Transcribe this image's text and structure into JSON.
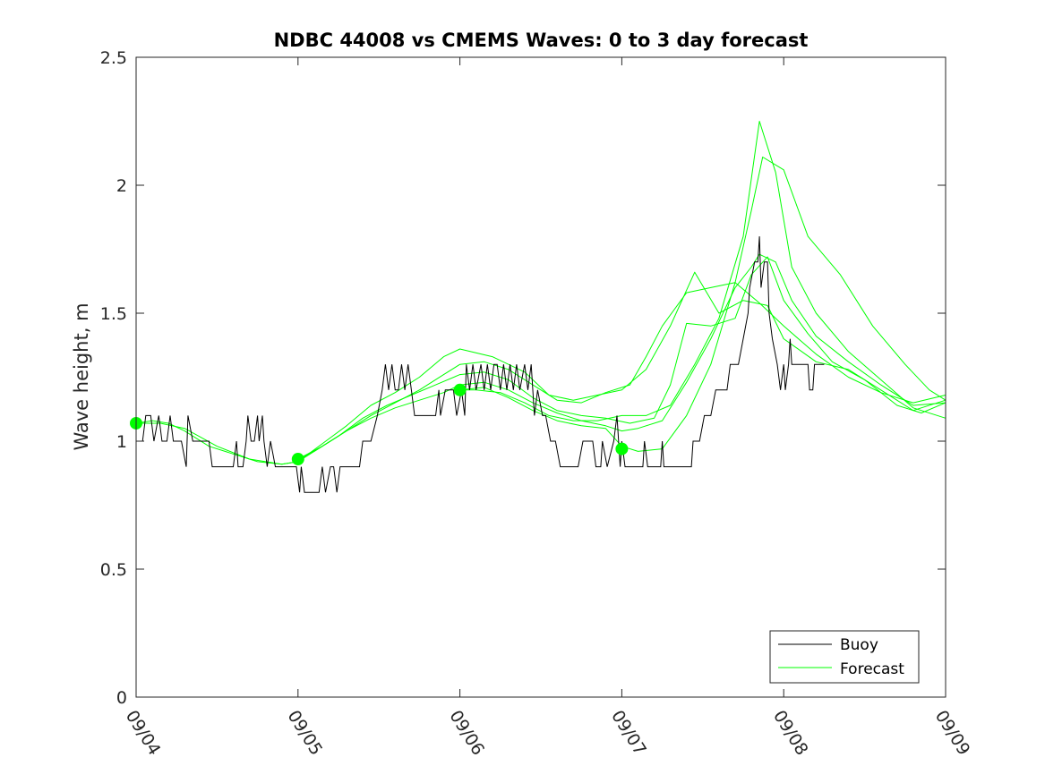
{
  "chart_data": {
    "type": "line",
    "title": "NDBC 44008 vs CMEMS Waves: 0 to 3 day forecast",
    "xlabel": "",
    "ylabel": "Wave height, m",
    "xlim": [
      0,
      5
    ],
    "ylim": [
      0,
      2.5
    ],
    "x_ticks": [
      0,
      1,
      2,
      3,
      4,
      5
    ],
    "x_tick_labels": [
      "09/04",
      "09/05",
      "09/06",
      "09/07",
      "09/08",
      "09/09"
    ],
    "y_ticks": [
      0,
      0.5,
      1,
      1.5,
      2,
      2.5
    ],
    "y_tick_labels": [
      "0",
      "0.5",
      "1",
      "1.5",
      "2",
      "2.5"
    ],
    "grid": false,
    "legend_position": "bottom-right",
    "legend": [
      {
        "label": "Buoy",
        "color": "#000000"
      },
      {
        "label": "Forecast",
        "color": "#00ff00"
      }
    ],
    "buoy": {
      "name": "Buoy",
      "color": "#000000",
      "points": [
        [
          0.0,
          1.0
        ],
        [
          0.04,
          1.0
        ],
        [
          0.06,
          1.1
        ],
        [
          0.09,
          1.1
        ],
        [
          0.11,
          1.0
        ],
        [
          0.14,
          1.1
        ],
        [
          0.16,
          1.0
        ],
        [
          0.19,
          1.0
        ],
        [
          0.21,
          1.1
        ],
        [
          0.23,
          1.0
        ],
        [
          0.26,
          1.0
        ],
        [
          0.28,
          1.0
        ],
        [
          0.31,
          0.9
        ],
        [
          0.32,
          1.1
        ],
        [
          0.35,
          1.0
        ],
        [
          0.4,
          1.0
        ],
        [
          0.45,
          1.0
        ],
        [
          0.47,
          0.9
        ],
        [
          0.55,
          0.9
        ],
        [
          0.6,
          0.9
        ],
        [
          0.62,
          1.0
        ],
        [
          0.63,
          0.9
        ],
        [
          0.66,
          0.9
        ],
        [
          0.68,
          1.0
        ],
        [
          0.69,
          1.1
        ],
        [
          0.71,
          1.0
        ],
        [
          0.73,
          1.0
        ],
        [
          0.75,
          1.1
        ],
        [
          0.76,
          1.0
        ],
        [
          0.78,
          1.1
        ],
        [
          0.79,
          1.0
        ],
        [
          0.81,
          0.9
        ],
        [
          0.83,
          1.0
        ],
        [
          0.86,
          0.9
        ],
        [
          0.94,
          0.9
        ],
        [
          0.97,
          0.9
        ],
        [
          0.99,
          0.9
        ],
        [
          1.01,
          0.8
        ],
        [
          1.02,
          0.9
        ],
        [
          1.04,
          0.8
        ],
        [
          1.1,
          0.8
        ],
        [
          1.13,
          0.8
        ],
        [
          1.15,
          0.9
        ],
        [
          1.17,
          0.8
        ],
        [
          1.2,
          0.9
        ],
        [
          1.22,
          0.9
        ],
        [
          1.24,
          0.8
        ],
        [
          1.26,
          0.9
        ],
        [
          1.38,
          0.9
        ],
        [
          1.4,
          1.0
        ],
        [
          1.45,
          1.0
        ],
        [
          1.49,
          1.1
        ],
        [
          1.52,
          1.2
        ],
        [
          1.54,
          1.3
        ],
        [
          1.56,
          1.2
        ],
        [
          1.58,
          1.3
        ],
        [
          1.6,
          1.2
        ],
        [
          1.62,
          1.2
        ],
        [
          1.64,
          1.3
        ],
        [
          1.66,
          1.2
        ],
        [
          1.68,
          1.3
        ],
        [
          1.7,
          1.2
        ],
        [
          1.72,
          1.1
        ],
        [
          1.74,
          1.1
        ],
        [
          1.8,
          1.1
        ],
        [
          1.85,
          1.1
        ],
        [
          1.87,
          1.2
        ],
        [
          1.88,
          1.1
        ],
        [
          1.91,
          1.2
        ],
        [
          1.96,
          1.2
        ],
        [
          1.98,
          1.1
        ],
        [
          2.01,
          1.2
        ],
        [
          2.03,
          1.1
        ],
        [
          2.04,
          1.3
        ],
        [
          2.06,
          1.2
        ],
        [
          2.08,
          1.3
        ],
        [
          2.1,
          1.2
        ],
        [
          2.13,
          1.3
        ],
        [
          2.15,
          1.2
        ],
        [
          2.17,
          1.3
        ],
        [
          2.19,
          1.2
        ],
        [
          2.21,
          1.3
        ],
        [
          2.23,
          1.3
        ],
        [
          2.25,
          1.2
        ],
        [
          2.27,
          1.3
        ],
        [
          2.29,
          1.2
        ],
        [
          2.31,
          1.3
        ],
        [
          2.33,
          1.2
        ],
        [
          2.35,
          1.3
        ],
        [
          2.37,
          1.2
        ],
        [
          2.4,
          1.3
        ],
        [
          2.42,
          1.2
        ],
        [
          2.44,
          1.3
        ],
        [
          2.46,
          1.1
        ],
        [
          2.48,
          1.2
        ],
        [
          2.51,
          1.1
        ],
        [
          2.53,
          1.1
        ],
        [
          2.56,
          1.0
        ],
        [
          2.59,
          1.0
        ],
        [
          2.62,
          0.9
        ],
        [
          2.7,
          0.9
        ],
        [
          2.73,
          0.9
        ],
        [
          2.76,
          1.0
        ],
        [
          2.79,
          1.0
        ],
        [
          2.82,
          1.0
        ],
        [
          2.84,
          0.9
        ],
        [
          2.87,
          0.9
        ],
        [
          2.88,
          1.0
        ],
        [
          2.91,
          0.9
        ],
        [
          2.95,
          1.0
        ],
        [
          2.97,
          1.1
        ],
        [
          2.99,
          0.9
        ],
        [
          3.0,
          1.0
        ],
        [
          3.02,
          0.9
        ],
        [
          3.1,
          0.9
        ],
        [
          3.13,
          0.9
        ],
        [
          3.14,
          1.0
        ],
        [
          3.16,
          0.9
        ],
        [
          3.24,
          0.9
        ],
        [
          3.25,
          1.0
        ],
        [
          3.26,
          0.9
        ],
        [
          3.34,
          0.9
        ],
        [
          3.43,
          0.9
        ],
        [
          3.44,
          1.0
        ],
        [
          3.48,
          1.0
        ],
        [
          3.51,
          1.1
        ],
        [
          3.55,
          1.1
        ],
        [
          3.58,
          1.2
        ],
        [
          3.62,
          1.2
        ],
        [
          3.65,
          1.2
        ],
        [
          3.67,
          1.3
        ],
        [
          3.72,
          1.3
        ],
        [
          3.75,
          1.4
        ],
        [
          3.78,
          1.5
        ],
        [
          3.79,
          1.6
        ],
        [
          3.82,
          1.7
        ],
        [
          3.84,
          1.7
        ],
        [
          3.85,
          1.8
        ],
        [
          3.86,
          1.6
        ],
        [
          3.88,
          1.7
        ],
        [
          3.9,
          1.7
        ],
        [
          3.91,
          1.5
        ],
        [
          3.93,
          1.4
        ],
        [
          3.96,
          1.3
        ],
        [
          3.98,
          1.2
        ],
        [
          4.0,
          1.3
        ],
        [
          4.01,
          1.2
        ],
        [
          4.03,
          1.3
        ],
        [
          4.04,
          1.4
        ],
        [
          4.05,
          1.3
        ],
        [
          4.08,
          1.3
        ],
        [
          4.15,
          1.3
        ],
        [
          4.16,
          1.2
        ],
        [
          4.18,
          1.2
        ],
        [
          4.19,
          1.3
        ],
        [
          4.25,
          1.3
        ]
      ]
    },
    "series": [
      {
        "name": "Forecast",
        "color": "#00ff00",
        "points": [
          [
            0.0,
            1.07
          ],
          [
            0.1,
            1.08
          ],
          [
            0.2,
            1.07
          ],
          [
            0.3,
            1.04
          ],
          [
            0.45,
            0.98
          ],
          [
            0.6,
            0.95
          ],
          [
            0.75,
            0.92
          ],
          [
            0.9,
            0.91
          ],
          [
            1.0,
            0.92
          ],
          [
            1.15,
            0.98
          ],
          [
            1.3,
            1.04
          ],
          [
            1.45,
            1.1
          ],
          [
            1.6,
            1.15
          ],
          [
            1.75,
            1.2
          ],
          [
            1.9,
            1.26
          ],
          [
            2.0,
            1.3
          ],
          [
            2.15,
            1.31
          ],
          [
            2.3,
            1.28
          ],
          [
            2.45,
            1.22
          ],
          [
            2.6,
            1.16
          ],
          [
            2.75,
            1.15
          ],
          [
            2.9,
            1.19
          ],
          [
            3.05,
            1.22
          ],
          [
            3.15,
            1.33
          ],
          [
            3.25,
            1.45
          ],
          [
            3.4,
            1.58
          ],
          [
            3.55,
            1.6
          ],
          [
            3.7,
            1.62
          ],
          [
            3.85,
            1.54
          ],
          [
            4.0,
            1.45
          ],
          [
            4.2,
            1.34
          ],
          [
            4.4,
            1.25
          ],
          [
            4.6,
            1.19
          ],
          [
            4.8,
            1.15
          ],
          [
            5.0,
            1.18
          ]
        ]
      },
      {
        "name": "",
        "color": "#00ff00",
        "points": [
          [
            0.0,
            1.07
          ],
          [
            0.15,
            1.07
          ],
          [
            0.3,
            1.05
          ],
          [
            0.5,
            0.98
          ],
          [
            0.7,
            0.93
          ],
          [
            0.9,
            0.91
          ],
          [
            1.0,
            0.92
          ],
          [
            1.15,
            0.99
          ],
          [
            1.3,
            1.06
          ],
          [
            1.45,
            1.14
          ],
          [
            1.6,
            1.19
          ],
          [
            1.75,
            1.25
          ],
          [
            1.9,
            1.33
          ],
          [
            2.0,
            1.36
          ],
          [
            2.2,
            1.33
          ],
          [
            2.4,
            1.27
          ],
          [
            2.55,
            1.18
          ],
          [
            2.7,
            1.16
          ],
          [
            2.85,
            1.18
          ],
          [
            3.0,
            1.2
          ],
          [
            3.15,
            1.28
          ],
          [
            3.3,
            1.45
          ],
          [
            3.45,
            1.66
          ],
          [
            3.6,
            1.5
          ],
          [
            3.75,
            1.55
          ],
          [
            3.9,
            1.53
          ],
          [
            4.0,
            1.4
          ],
          [
            4.2,
            1.31
          ],
          [
            4.4,
            1.28
          ],
          [
            4.6,
            1.2
          ],
          [
            4.8,
            1.12
          ],
          [
            5.0,
            1.16
          ]
        ]
      },
      {
        "name": "",
        "color": "#00ff00",
        "points": [
          [
            1.0,
            0.93
          ],
          [
            1.1,
            0.96
          ],
          [
            1.25,
            1.02
          ],
          [
            1.4,
            1.09
          ],
          [
            1.55,
            1.14
          ],
          [
            1.7,
            1.18
          ],
          [
            1.85,
            1.22
          ],
          [
            2.0,
            1.26
          ],
          [
            2.15,
            1.27
          ],
          [
            2.3,
            1.24
          ],
          [
            2.45,
            1.17
          ],
          [
            2.6,
            1.12
          ],
          [
            2.75,
            1.1
          ],
          [
            2.9,
            1.09
          ],
          [
            3.05,
            1.07
          ],
          [
            3.2,
            1.09
          ],
          [
            3.3,
            1.22
          ],
          [
            3.4,
            1.46
          ],
          [
            3.55,
            1.45
          ],
          [
            3.7,
            1.48
          ],
          [
            3.8,
            1.65
          ],
          [
            3.9,
            1.72
          ],
          [
            4.0,
            1.55
          ],
          [
            4.15,
            1.42
          ],
          [
            4.3,
            1.31
          ],
          [
            4.5,
            1.24
          ],
          [
            4.7,
            1.14
          ],
          [
            4.85,
            1.11
          ],
          [
            5.0,
            1.15
          ]
        ]
      },
      {
        "name": "",
        "color": "#00ff00",
        "points": [
          [
            1.0,
            0.93
          ],
          [
            1.15,
            0.98
          ],
          [
            1.3,
            1.04
          ],
          [
            1.45,
            1.09
          ],
          [
            1.6,
            1.13
          ],
          [
            1.75,
            1.16
          ],
          [
            1.9,
            1.19
          ],
          [
            2.0,
            1.22
          ],
          [
            2.15,
            1.23
          ],
          [
            2.3,
            1.2
          ],
          [
            2.45,
            1.15
          ],
          [
            2.6,
            1.11
          ],
          [
            2.75,
            1.08
          ],
          [
            2.9,
            1.06
          ],
          [
            3.0,
            1.04
          ],
          [
            3.1,
            1.05
          ],
          [
            3.25,
            1.08
          ],
          [
            3.4,
            1.23
          ],
          [
            3.55,
            1.4
          ],
          [
            3.7,
            1.6
          ],
          [
            3.8,
            1.68
          ],
          [
            3.85,
            1.73
          ],
          [
            3.95,
            1.7
          ],
          [
            4.05,
            1.55
          ],
          [
            4.2,
            1.41
          ],
          [
            4.4,
            1.31
          ],
          [
            4.6,
            1.22
          ],
          [
            4.8,
            1.14
          ],
          [
            5.0,
            1.15
          ]
        ]
      },
      {
        "name": "",
        "color": "#00ff00",
        "points": [
          [
            2.0,
            1.2
          ],
          [
            2.1,
            1.2
          ],
          [
            2.25,
            1.19
          ],
          [
            2.4,
            1.15
          ],
          [
            2.55,
            1.1
          ],
          [
            2.7,
            1.08
          ],
          [
            2.85,
            1.08
          ],
          [
            3.0,
            1.1
          ],
          [
            3.15,
            1.1
          ],
          [
            3.3,
            1.14
          ],
          [
            3.45,
            1.3
          ],
          [
            3.6,
            1.48
          ],
          [
            3.75,
            1.8
          ],
          [
            3.85,
            2.25
          ],
          [
            3.95,
            2.05
          ],
          [
            4.05,
            1.68
          ],
          [
            4.2,
            1.5
          ],
          [
            4.4,
            1.35
          ],
          [
            4.6,
            1.24
          ],
          [
            4.8,
            1.13
          ],
          [
            5.0,
            1.09
          ]
        ]
      },
      {
        "name": "",
        "color": "#00ff00",
        "points": [
          [
            2.0,
            1.2
          ],
          [
            2.15,
            1.21
          ],
          [
            2.3,
            1.17
          ],
          [
            2.45,
            1.12
          ],
          [
            2.6,
            1.08
          ],
          [
            2.75,
            1.06
          ],
          [
            2.9,
            1.05
          ],
          [
            3.0,
            0.98
          ],
          [
            3.1,
            0.96
          ],
          [
            3.25,
            0.97
          ],
          [
            3.4,
            1.1
          ],
          [
            3.55,
            1.3
          ],
          [
            3.7,
            1.62
          ],
          [
            3.8,
            1.9
          ],
          [
            3.87,
            2.11
          ],
          [
            4.0,
            2.06
          ],
          [
            4.15,
            1.8
          ],
          [
            4.35,
            1.65
          ],
          [
            4.55,
            1.45
          ],
          [
            4.75,
            1.3
          ],
          [
            4.9,
            1.2
          ],
          [
            5.0,
            1.16
          ]
        ]
      }
    ],
    "markers": {
      "color": "#00ff00",
      "points": [
        [
          0.0,
          1.07
        ],
        [
          1.0,
          0.93
        ],
        [
          2.0,
          1.2
        ],
        [
          3.0,
          0.97
        ]
      ]
    }
  }
}
